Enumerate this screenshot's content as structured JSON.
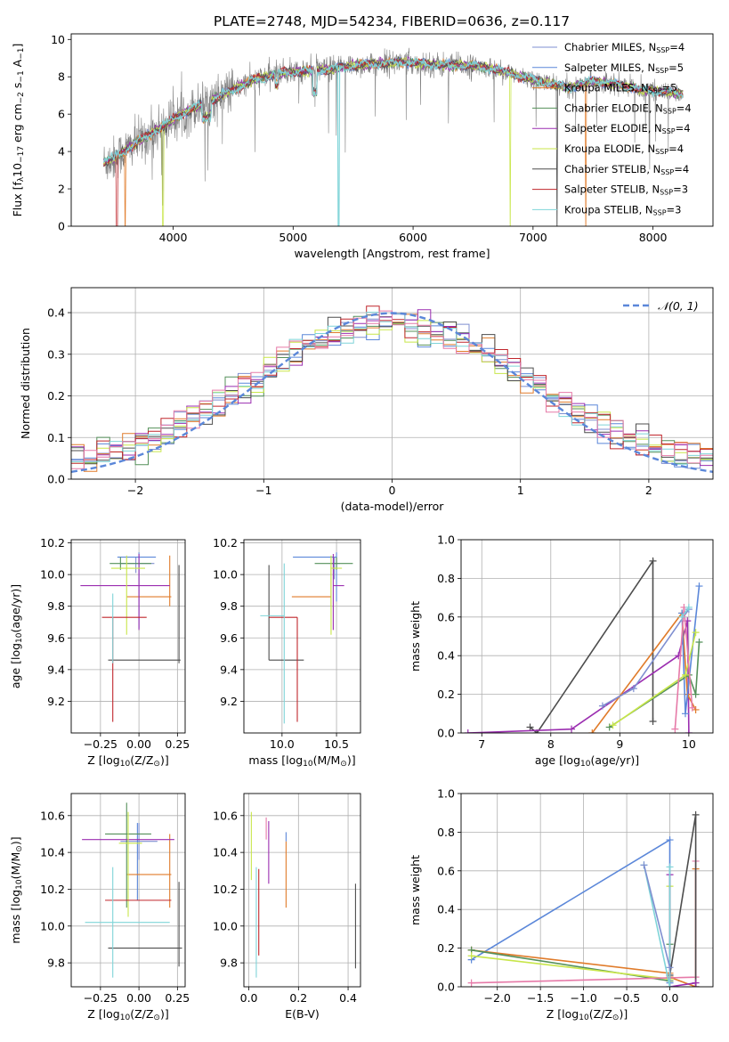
{
  "title": "PLATE=2748, MJD=54234, FIBERID=0636, z=0.117",
  "colors": {
    "Chabrier MILES": "#7f8fd0",
    "Salpeter MILES": "#5b87d9",
    "Kroupa MILES": "#e07b2a",
    "Chabrier ELODIE": "#55905a",
    "Salpeter ELODIE": "#9b2eb0",
    "Kroupa ELODIE": "#c8e64a",
    "Chabrier STELIB": "#4d4d4d",
    "Salpeter STELIB": "#c0262c",
    "Kroupa STELIB": "#7fd4d8",
    "Gaussian": "#5b87d9",
    "Pink": "#e67aa8"
  },
  "legend_spectrum": [
    {
      "base": "Chabrier MILES, N",
      "sub": "SSP",
      "tail": "=4",
      "color_key": "Chabrier MILES"
    },
    {
      "base": "Salpeter MILES, N",
      "sub": "SSP",
      "tail": "=5",
      "color_key": "Salpeter MILES"
    },
    {
      "base": "Kroupa MILES, N",
      "sub": "SSP",
      "tail": "=5",
      "color_key": "Kroupa MILES"
    },
    {
      "base": "Chabrier ELODIE, N",
      "sub": "SSP",
      "tail": "=4",
      "color_key": "Chabrier ELODIE"
    },
    {
      "base": "Salpeter ELODIE, N",
      "sub": "SSP",
      "tail": "=4",
      "color_key": "Salpeter ELODIE"
    },
    {
      "base": "Kroupa ELODIE, N",
      "sub": "SSP",
      "tail": "=4",
      "color_key": "Kroupa ELODIE"
    },
    {
      "base": "Chabrier STELIB, N",
      "sub": "SSP",
      "tail": "=4",
      "color_key": "Chabrier STELIB"
    },
    {
      "base": "Salpeter STELIB, N",
      "sub": "SSP",
      "tail": "=3",
      "color_key": "Salpeter STELIB"
    },
    {
      "base": "Kroupa STELIB, N",
      "sub": "SSP",
      "tail": "=3",
      "color_key": "Kroupa STELIB"
    }
  ],
  "legend_hist": "𝒩(0, 1)",
  "chart_data": [
    {
      "id": "spectrum",
      "type": "line",
      "xlabel": "wavelength [Angstrom, rest frame]",
      "ylabel_parts": [
        "Flux [f",
        "λ",
        "10",
        "−17",
        " erg cm",
        "−2",
        " s",
        "−1",
        " A",
        "−1",
        "]"
      ],
      "xlim": [
        3150,
        8500
      ],
      "ylim": [
        0,
        10.3
      ],
      "xticks": [
        4000,
        5000,
        6000,
        7000,
        8000
      ],
      "yticks": [
        0,
        2,
        4,
        6,
        8,
        10
      ],
      "grid": false,
      "legend": "top-right",
      "data_range_x": [
        3420,
        8250
      ],
      "continuum": [
        [
          3420,
          3.4
        ],
        [
          3500,
          3.6
        ],
        [
          3700,
          4.5
        ],
        [
          3900,
          5.3
        ],
        [
          4100,
          6.1
        ],
        [
          4300,
          6.7
        ],
        [
          4500,
          7.3
        ],
        [
          4700,
          7.9
        ],
        [
          4900,
          8.2
        ],
        [
          5100,
          8.3
        ],
        [
          5300,
          8.4
        ],
        [
          5500,
          8.6
        ],
        [
          5700,
          8.7
        ],
        [
          5900,
          8.8
        ],
        [
          6100,
          8.7
        ],
        [
          6300,
          8.6
        ],
        [
          6500,
          8.6
        ],
        [
          6700,
          8.4
        ],
        [
          6900,
          8.0
        ],
        [
          7100,
          7.7
        ],
        [
          7300,
          7.4
        ],
        [
          7500,
          7.8
        ],
        [
          7700,
          7.6
        ],
        [
          7900,
          7.3
        ],
        [
          8100,
          7.2
        ],
        [
          8250,
          7.1
        ]
      ]
    },
    {
      "id": "residuals",
      "type": "histogram",
      "xlabel": "(data-model)/error",
      "ylabel": "Normed distribution",
      "xlim": [
        -2.5,
        2.5
      ],
      "ylim": [
        0,
        0.46
      ],
      "xticks": [
        -2,
        -1,
        0,
        1,
        2
      ],
      "yticks": [
        0.0,
        0.1,
        0.2,
        0.3,
        0.4
      ],
      "grid": true,
      "legend": "top-right",
      "bin_width": 0.1,
      "reference_curve": "normal(0,1)"
    },
    {
      "id": "age_vs_Z",
      "type": "errorbar",
      "xlabel_parts": [
        "Z [log",
        "10",
        "(Z/Z",
        "⊙",
        ")]"
      ],
      "ylabel_parts": [
        "age  [log",
        "10",
        "(age/yr)]"
      ],
      "xlim": [
        -0.44,
        0.3
      ],
      "ylim": [
        9.0,
        10.22
      ],
      "xticks": [
        -0.25,
        0.0,
        0.25
      ],
      "yticks": [
        9.2,
        9.4,
        9.6,
        9.8,
        10.0,
        10.2
      ],
      "grid": true,
      "points": [
        {
          "c": "Chabrier MILES",
          "x": -0.02,
          "xe": [
            0.1,
            0.12
          ],
          "y": 10.07,
          "ye": [
            0.06,
            0.04
          ]
        },
        {
          "c": "Salpeter MILES",
          "x": 0.0,
          "xe": [
            0.14,
            0.11
          ],
          "y": 10.11,
          "ye": [
            0.45,
            0.03
          ]
        },
        {
          "c": "Kroupa MILES",
          "x": 0.2,
          "xe": [
            0.28,
            0.01
          ],
          "y": 9.86,
          "ye": [
            0.06,
            0.26
          ]
        },
        {
          "c": "Chabrier ELODIE",
          "x": -0.12,
          "xe": [
            0.07,
            0.2
          ],
          "y": 10.07,
          "ye": [
            0.04,
            0.04
          ]
        },
        {
          "c": "Salpeter ELODIE",
          "x": -0.0,
          "xe": [
            0.38,
            0.2
          ],
          "y": 9.93,
          "ye": [
            0.28,
            0.2
          ]
        },
        {
          "c": "Kroupa ELODIE",
          "x": -0.08,
          "xe": [
            0.1,
            0.12
          ],
          "y": 10.04,
          "ye": [
            0.42,
            0.08
          ]
        },
        {
          "c": "Chabrier STELIB",
          "x": 0.26,
          "xe": [
            0.46,
            0.01
          ],
          "y": 9.46,
          "ye": [
            0.02,
            0.6
          ]
        },
        {
          "c": "Salpeter STELIB",
          "x": -0.17,
          "xe": [
            0.07,
            0.22
          ],
          "y": 9.73,
          "ye": [
            0.66,
            0.0
          ]
        },
        {
          "c": "Kroupa STELIB",
          "x": -0.17,
          "xe": [
            0.0,
            0.0
          ],
          "y": 9.74,
          "ye": [
            0.3,
            0.14
          ]
        }
      ]
    },
    {
      "id": "age_vs_mass",
      "type": "errorbar",
      "xlabel_parts": [
        "mass [log",
        "10",
        "(M/M",
        "⊙",
        ")]"
      ],
      "ylabel_parts": [],
      "xlim": [
        9.65,
        10.72
      ],
      "ylim": [
        9.0,
        10.22
      ],
      "xticks": [
        10.0,
        10.5
      ],
      "yticks": [
        9.2,
        9.4,
        9.6,
        9.8,
        10.0,
        10.2
      ],
      "grid": true,
      "points": [
        {
          "c": "Chabrier MILES",
          "x": 10.48,
          "xe": [
            0.04,
            0.05
          ],
          "y": 10.07,
          "ye": [
            0.1,
            0.04
          ]
        },
        {
          "c": "Salpeter MILES",
          "x": 10.5,
          "xe": [
            0.4,
            0.0
          ],
          "y": 10.11,
          "ye": [
            0.28,
            0.03
          ]
        },
        {
          "c": "Kroupa MILES",
          "x": 10.45,
          "xe": [
            0.36,
            0.0
          ],
          "y": 9.86,
          "ye": [
            0.06,
            0.2
          ]
        },
        {
          "c": "Chabrier ELODIE",
          "x": 10.5,
          "xe": [
            0.2,
            0.15
          ],
          "y": 10.07,
          "ye": [
            0.04,
            0.04
          ]
        },
        {
          "c": "Salpeter ELODIE",
          "x": 10.47,
          "xe": [
            0.0,
            0.1
          ],
          "y": 9.93,
          "ye": [
            0.28,
            0.2
          ]
        },
        {
          "c": "Kroupa ELODIE",
          "x": 10.45,
          "xe": [
            0.0,
            0.1
          ],
          "y": 10.04,
          "ye": [
            0.42,
            0.08
          ]
        },
        {
          "c": "Chabrier STELIB",
          "x": 9.88,
          "xe": [
            0.0,
            0.32
          ],
          "y": 9.46,
          "ye": [
            0.0,
            0.6
          ]
        },
        {
          "c": "Salpeter STELIB",
          "x": 10.14,
          "xe": [
            0.26,
            0.0
          ],
          "y": 9.73,
          "ye": [
            0.66,
            0.0
          ]
        },
        {
          "c": "Kroupa STELIB",
          "x": 10.02,
          "xe": [
            0.22,
            0.0
          ],
          "y": 9.74,
          "ye": [
            0.68,
            0.33
          ]
        }
      ]
    },
    {
      "id": "weight_vs_age",
      "type": "line",
      "xlabel_parts": [
        "age  [log",
        "10",
        "(age/yr)]"
      ],
      "ylabel": "mass weight",
      "xlim": [
        6.7,
        10.35
      ],
      "ylim": [
        0,
        1.0
      ],
      "xticks": [
        7,
        8,
        9,
        10
      ],
      "yticks": [
        0.0,
        0.2,
        0.4,
        0.6,
        0.8,
        1.0
      ],
      "grid": true,
      "series": [
        {
          "c": "Chabrier STELIB",
          "x": [
            7.7,
            7.8,
            9.48,
            9.48
          ],
          "y": [
            0.03,
            0.0,
            0.89,
            0.06
          ]
        },
        {
          "c": "Salpeter ELODIE",
          "x": [
            6.8,
            8.3,
            9.85,
            9.98,
            10.0
          ],
          "y": [
            0.0,
            0.02,
            0.4,
            0.58,
            0.0
          ]
        },
        {
          "c": "Kroupa MILES",
          "x": [
            8.6,
            9.9,
            9.98,
            10.1
          ],
          "y": [
            0.0,
            0.62,
            0.2,
            0.12
          ]
        },
        {
          "c": "Salpeter MILES",
          "x": [
            9.9,
            9.95,
            10.15
          ],
          "y": [
            0.62,
            0.1,
            0.76
          ]
        },
        {
          "c": "Chabrier ELODIE",
          "x": [
            8.85,
            10.0,
            10.1,
            10.15
          ],
          "y": [
            0.03,
            0.3,
            0.2,
            0.47
          ]
        },
        {
          "c": "Kroupa ELODIE",
          "x": [
            8.9,
            9.95,
            10.1
          ],
          "y": [
            0.04,
            0.3,
            0.52
          ]
        },
        {
          "c": "Chabrier MILES",
          "x": [
            8.75,
            9.2,
            10.0
          ],
          "y": [
            0.14,
            0.23,
            0.64
          ]
        },
        {
          "c": "Pink",
          "x": [
            9.8,
            9.93,
            10.05
          ],
          "y": [
            0.02,
            0.65,
            0.13
          ]
        },
        {
          "c": "Kroupa STELIB",
          "x": [
            9.9,
            10.0
          ],
          "y": [
            0.6,
            0.65
          ]
        }
      ]
    },
    {
      "id": "mass_vs_Z",
      "type": "errorbar",
      "xlabel_parts": [
        "Z [log",
        "10",
        "(Z/Z",
        "⊙",
        ")]"
      ],
      "ylabel_parts": [
        "mass [log",
        "10",
        "(M/M",
        "⊙",
        ")]"
      ],
      "xlim": [
        -0.44,
        0.3
      ],
      "ylim": [
        9.67,
        10.72
      ],
      "xticks": [
        -0.25,
        0.0,
        0.25
      ],
      "yticks": [
        9.8,
        10.0,
        10.2,
        10.4,
        10.6
      ],
      "grid": true,
      "points": [
        {
          "c": "Chabrier MILES",
          "x": 0.0,
          "xe": [
            0.12,
            0.12
          ],
          "y": 10.46,
          "ye": [
            0.1,
            0.1
          ]
        },
        {
          "c": "Salpeter MILES",
          "x": -0.01,
          "xe": [
            0.0,
            0.0
          ],
          "y": 10.5,
          "ye": [
            0.36,
            0.06
          ]
        },
        {
          "c": "Kroupa MILES",
          "x": 0.2,
          "xe": [
            0.28,
            0.01
          ],
          "y": 10.28,
          "ye": [
            0.18,
            0.22
          ]
        },
        {
          "c": "Chabrier ELODIE",
          "x": -0.08,
          "xe": [
            0.14,
            0.16
          ],
          "y": 10.5,
          "ye": [
            0.4,
            0.17
          ]
        },
        {
          "c": "Salpeter ELODIE",
          "x": -0.03,
          "xe": [
            0.34,
            0.26
          ],
          "y": 10.47,
          "ye": [
            0.0,
            0.0
          ]
        },
        {
          "c": "Kroupa ELODIE",
          "x": -0.07,
          "xe": [
            0.06,
            0.09
          ],
          "y": 10.45,
          "ye": [
            0.4,
            0.17
          ]
        },
        {
          "c": "Chabrier STELIB",
          "x": 0.26,
          "xe": [
            0.46,
            0.02
          ],
          "y": 9.88,
          "ye": [
            0.1,
            0.36
          ]
        },
        {
          "c": "Salpeter STELIB",
          "x": -0.06,
          "xe": [
            0.16,
            0.27
          ],
          "y": 10.14,
          "ye": [
            0.0,
            0.0
          ]
        },
        {
          "c": "Kroupa STELIB",
          "x": -0.17,
          "xe": [
            0.18,
            0.37
          ],
          "y": 10.02,
          "ye": [
            0.3,
            0.3
          ]
        }
      ]
    },
    {
      "id": "mass_vs_ebv",
      "type": "errorbar",
      "xlabel": "E(B-V)",
      "ylabel_parts": [],
      "xlim": [
        -0.02,
        0.45
      ],
      "ylim": [
        9.67,
        10.72
      ],
      "xticks": [
        0.0,
        0.2,
        0.4
      ],
      "yticks": [
        9.8,
        10.0,
        10.2,
        10.4,
        10.6
      ],
      "grid": true,
      "points": [
        {
          "c": "Kroupa ELODIE",
          "x": 0.01,
          "xe": [
            0,
            0
          ],
          "y": 10.45,
          "ye": [
            0.2,
            0.17
          ]
        },
        {
          "c": "Kroupa STELIB",
          "x": 0.03,
          "xe": [
            0,
            0
          ],
          "y": 10.02,
          "ye": [
            0.3,
            0.3
          ]
        },
        {
          "c": "Salpeter STELIB",
          "x": 0.04,
          "xe": [
            0,
            0
          ],
          "y": 10.14,
          "ye": [
            0.3,
            0.17
          ]
        },
        {
          "c": "Pink",
          "x": 0.07,
          "xe": [
            0,
            0
          ],
          "y": 10.47,
          "ye": [
            0.0,
            0.12
          ]
        },
        {
          "c": "Salpeter ELODIE",
          "x": 0.08,
          "xe": [
            0,
            0
          ],
          "y": 10.4,
          "ye": [
            0.17,
            0.17
          ]
        },
        {
          "c": "Kroupa MILES",
          "x": 0.15,
          "xe": [
            0,
            0
          ],
          "y": 10.28,
          "ye": [
            0.18,
            0.18
          ]
        },
        {
          "c": "Salpeter MILES",
          "x": 0.15,
          "xe": [
            0,
            0
          ],
          "y": 10.46,
          "ye": [
            0.0,
            0.05
          ]
        },
        {
          "c": "Chabrier STELIB",
          "x": 0.43,
          "xe": [
            0,
            0
          ],
          "y": 10.0,
          "ye": [
            0.23,
            0.23
          ]
        }
      ]
    },
    {
      "id": "weight_vs_Z",
      "type": "line",
      "xlabel_parts": [
        "Z [log",
        "10",
        "(Z/Z",
        "⊙",
        ")]"
      ],
      "ylabel": "mass weight",
      "xlim": [
        -2.42,
        0.5
      ],
      "ylim": [
        0,
        1.0
      ],
      "xticks": [
        -2.0,
        -1.5,
        -1.0,
        -0.5,
        0.0
      ],
      "yticks": [
        0.0,
        0.2,
        0.4,
        0.6,
        0.8,
        1.0
      ],
      "grid": true,
      "series": [
        {
          "c": "Salpeter MILES",
          "x": [
            -2.3,
            0.0,
            0.0
          ],
          "y": [
            0.14,
            0.76,
            0.02
          ]
        },
        {
          "c": "Kroupa MILES",
          "x": [
            -2.3,
            0.0,
            0.0,
            0.3,
            0.3
          ],
          "y": [
            0.19,
            0.07,
            0.05,
            0.0,
            0.61
          ]
        },
        {
          "c": "Chabrier ELODIE",
          "x": [
            -2.3,
            0.0,
            0.0
          ],
          "y": [
            0.19,
            0.03,
            0.22
          ]
        },
        {
          "c": "Kroupa ELODIE",
          "x": [
            -2.3,
            0.0,
            0.0
          ],
          "y": [
            0.16,
            0.04,
            0.52
          ]
        },
        {
          "c": "Pink",
          "x": [
            -2.3,
            0.3,
            0.3
          ],
          "y": [
            0.02,
            0.05,
            0.65
          ]
        },
        {
          "c": "Chabrier STELIB",
          "x": [
            0.0,
            0.3,
            0.3
          ],
          "y": [
            0.06,
            0.89,
            0.0
          ]
        },
        {
          "c": "Salpeter ELODIE",
          "x": [
            0.0,
            0.0,
            0.3
          ],
          "y": [
            0.58,
            0.0,
            0.02
          ]
        },
        {
          "c": "Kroupa STELIB",
          "x": [
            -0.3,
            0.0,
            0.0
          ],
          "y": [
            0.63,
            0.0,
            0.62
          ]
        },
        {
          "c": "Chabrier MILES",
          "x": [
            -0.3,
            0.0
          ],
          "y": [
            0.63,
            0.1
          ]
        }
      ]
    }
  ]
}
